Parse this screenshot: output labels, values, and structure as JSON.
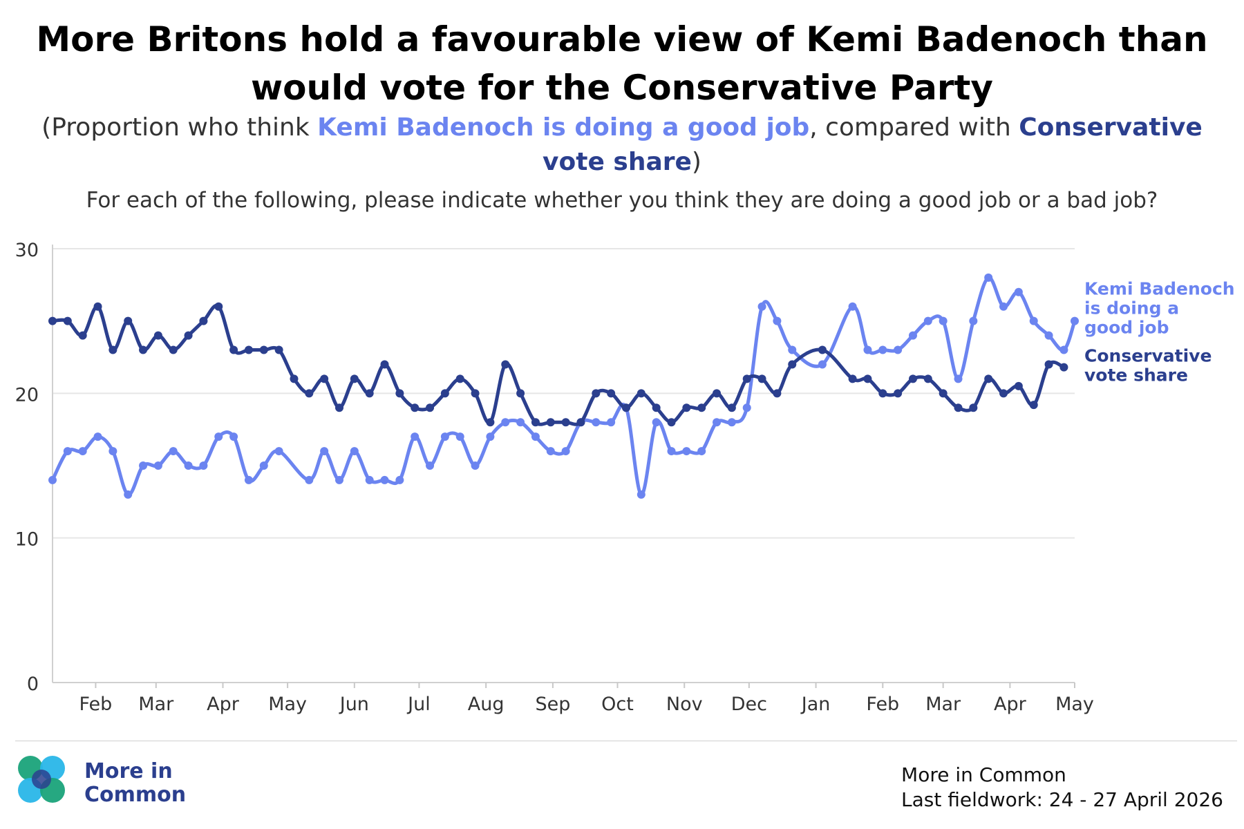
{
  "header": {
    "title": "More Britons hold a favourable view of Kemi Badenoch than would vote for the Conservative Party",
    "subtitle_pre": "(Proportion who think ",
    "subtitle_hl1": "Kemi Badenoch is doing a good job",
    "subtitle_mid": ", compared with ",
    "subtitle_hl2": "Conservative vote share",
    "subtitle_post": ")",
    "question": "For each of the following, please indicate whether you think they are doing a good job or a bad job?"
  },
  "footer": {
    "brand_name": "More in Common",
    "source": "More in Common",
    "fieldwork": "Last fieldwork: 24 - 27 April 2026"
  },
  "colors": {
    "badenoch": "#6b84f0",
    "conservative": "#2b3f8e",
    "grid": "#e6e6e6",
    "axis_text": "#333333"
  },
  "chart_data": {
    "type": "line",
    "title": "More Britons hold a favourable view of Kemi Badenoch than would vote for the Conservative Party",
    "xlabel": "",
    "ylabel": "",
    "ylim": [
      0,
      30
    ],
    "yticks": [
      0,
      10,
      20,
      30
    ],
    "x_tick_labels": [
      "Feb",
      "Mar",
      "Apr",
      "May",
      "Jun",
      "Jul",
      "Aug",
      "Sep",
      "Oct",
      "Nov",
      "Dec",
      "Jan",
      "Feb",
      "Mar",
      "Apr",
      "May"
    ],
    "x_tick_positions": [
      "2025-02-01",
      "2025-03-01",
      "2025-04-01",
      "2025-05-01",
      "2025-06-01",
      "2025-07-01",
      "2025-08-01",
      "2025-09-01",
      "2025-10-01",
      "2025-11-01",
      "2025-12-01",
      "2026-01-01",
      "2026-02-01",
      "2026-03-01",
      "2026-04-01",
      "2026-05-01"
    ],
    "x_range": [
      "2025-01-12",
      "2026-05-01"
    ],
    "grid": true,
    "legend": "end-of-line labels",
    "series": [
      {
        "name": "Conservative vote share",
        "label": "Conservative vote share",
        "color_key": "conservative",
        "x": [
          "2025-01-12",
          "2025-01-19",
          "2025-01-26",
          "2025-02-02",
          "2025-02-09",
          "2025-02-16",
          "2025-02-23",
          "2025-03-02",
          "2025-03-09",
          "2025-03-16",
          "2025-03-23",
          "2025-03-30",
          "2025-04-06",
          "2025-04-13",
          "2025-04-20",
          "2025-04-27",
          "2025-05-04",
          "2025-05-11",
          "2025-05-18",
          "2025-05-25",
          "2025-06-01",
          "2025-06-08",
          "2025-06-15",
          "2025-06-22",
          "2025-06-29",
          "2025-07-06",
          "2025-07-13",
          "2025-07-20",
          "2025-07-27",
          "2025-08-03",
          "2025-08-10",
          "2025-08-17",
          "2025-08-24",
          "2025-08-31",
          "2025-09-07",
          "2025-09-14",
          "2025-09-21",
          "2025-09-28",
          "2025-10-05",
          "2025-10-12",
          "2025-10-19",
          "2025-10-26",
          "2025-11-02",
          "2025-11-09",
          "2025-11-16",
          "2025-11-23",
          "2025-11-30",
          "2025-12-07",
          "2025-12-14",
          "2025-12-21",
          "2026-01-04",
          "2026-01-18",
          "2026-01-25",
          "2026-02-01",
          "2026-02-08",
          "2026-02-15",
          "2026-02-22",
          "2026-03-01",
          "2026-03-08",
          "2026-03-15",
          "2026-03-22",
          "2026-03-29",
          "2026-04-05",
          "2026-04-12",
          "2026-04-19",
          "2026-04-26"
        ],
        "values": [
          25,
          25,
          24,
          26,
          23,
          25,
          23,
          24,
          23,
          24,
          25,
          26,
          23,
          23,
          23,
          23,
          21,
          20,
          21,
          19,
          21,
          20,
          22,
          20,
          19,
          19,
          20,
          21,
          20,
          18,
          22,
          20,
          18,
          18,
          18,
          18,
          20,
          20,
          19,
          20,
          19,
          18,
          19,
          19,
          20,
          19,
          21,
          21,
          20,
          22,
          23,
          21,
          21,
          20,
          20,
          21,
          21,
          20,
          19,
          19,
          21,
          20,
          20.5,
          19.2,
          22,
          21.8
        ]
      },
      {
        "name": "Kemi Badenoch is doing a good job",
        "label": "Kemi Badenoch is doing a good job",
        "color_key": "badenoch",
        "x": [
          "2025-01-12",
          "2025-01-19",
          "2025-01-26",
          "2025-02-02",
          "2025-02-09",
          "2025-02-16",
          "2025-02-23",
          "2025-03-02",
          "2025-03-09",
          "2025-03-16",
          "2025-03-23",
          "2025-03-30",
          "2025-04-06",
          "2025-04-13",
          "2025-04-20",
          "2025-04-27",
          "2025-05-11",
          "2025-05-18",
          "2025-05-25",
          "2025-06-01",
          "2025-06-08",
          "2025-06-15",
          "2025-06-22",
          "2025-06-29",
          "2025-07-06",
          "2025-07-13",
          "2025-07-20",
          "2025-07-27",
          "2025-08-03",
          "2025-08-10",
          "2025-08-17",
          "2025-08-24",
          "2025-08-31",
          "2025-09-07",
          "2025-09-14",
          "2025-09-21",
          "2025-09-28",
          "2025-10-05",
          "2025-10-12",
          "2025-10-19",
          "2025-10-26",
          "2025-11-02",
          "2025-11-09",
          "2025-11-16",
          "2025-11-23",
          "2025-11-30",
          "2025-12-07",
          "2025-12-14",
          "2025-12-21",
          "2026-01-04",
          "2026-01-18",
          "2026-01-25",
          "2026-02-01",
          "2026-02-08",
          "2026-02-15",
          "2026-02-22",
          "2026-03-01",
          "2026-03-08",
          "2026-03-15",
          "2026-03-22",
          "2026-03-29",
          "2026-04-05",
          "2026-04-12",
          "2026-04-19",
          "2026-04-26",
          "2026-05-01"
        ],
        "values": [
          14,
          16,
          16,
          17,
          16,
          13,
          15,
          15,
          16,
          15,
          15,
          17,
          17,
          14,
          15,
          16,
          14,
          16,
          14,
          16,
          14,
          14,
          14,
          17,
          15,
          17,
          17,
          15,
          17,
          18,
          18,
          17,
          16,
          16,
          18,
          18,
          18,
          19,
          13,
          18,
          16,
          16,
          16,
          18,
          18,
          19,
          26,
          25,
          23,
          22,
          26,
          23,
          23,
          23,
          24,
          25,
          25,
          21,
          25,
          28,
          26,
          27,
          25,
          24,
          23,
          25
        ]
      }
    ]
  }
}
